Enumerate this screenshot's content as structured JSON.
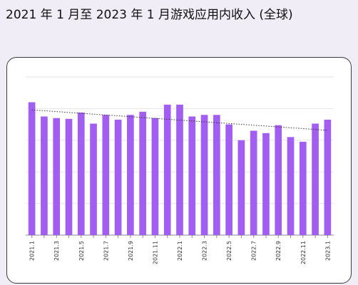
{
  "title": "2021 年 1 月至 2023 年 1 月游戏应用内收入 (全球)",
  "colors": {
    "bar": "#a15ef0",
    "grid": "#e6e6e6",
    "axis": "#888888",
    "trend": "#333333"
  },
  "chart_data": {
    "type": "bar",
    "title": "2021 年 1 月至 2023 年 1 月游戏应用内收入 (全球)",
    "xlabel": "",
    "ylabel": "",
    "ylim": [
      0,
      100
    ],
    "grid": true,
    "trendline": true,
    "categories": [
      "2021.1",
      "2021.2",
      "2021.3",
      "2021.4",
      "2021.5",
      "2021.6",
      "2021.7",
      "2021.8",
      "2021.9",
      "2021.10",
      "2021.11",
      "2021.12",
      "2022.1",
      "2022.2",
      "2022.3",
      "2022.4",
      "2022.5",
      "2022.6",
      "2022.7",
      "2022.8",
      "2022.9",
      "2022.10",
      "2022.11",
      "2022.12",
      "2023.1"
    ],
    "tick_labels": [
      "2021.1",
      "",
      "2021.3",
      "",
      "2021.5",
      "",
      "2021.7",
      "",
      "2021.9",
      "",
      "2021.11",
      "",
      "2022.1",
      "",
      "2022.3",
      "",
      "2022.5",
      "",
      "2022.7",
      "",
      "2022.9",
      "",
      "2022.11",
      "",
      "2023.1"
    ],
    "values": [
      84,
      75,
      74,
      73.5,
      77.5,
      70.5,
      76,
      73,
      76,
      78,
      74,
      82.5,
      82.5,
      75,
      76,
      76,
      70,
      60,
      66,
      64.5,
      69.5,
      62,
      59,
      70.5,
      73
    ]
  }
}
